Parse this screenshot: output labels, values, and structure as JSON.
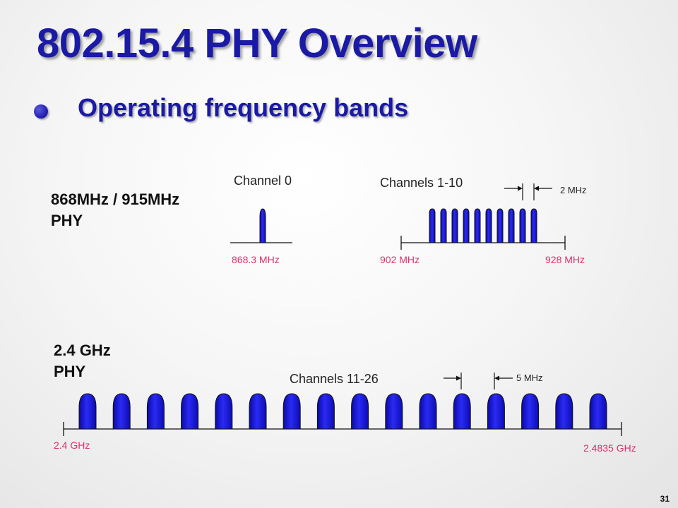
{
  "slide": {
    "title": "802.15.4 PHY Overview",
    "bullet": "Operating frequency bands",
    "page_number": "31"
  },
  "band_low": {
    "phy_label_line1": "868MHz / 915MHz",
    "phy_label_line2": "PHY",
    "channel0_label": "Channel 0",
    "channel0_freq": "868.3 MHz",
    "channels_label": "Channels 1-10",
    "channels_count": 10,
    "start_freq": "902 MHz",
    "end_freq": "928 MHz",
    "spacing": "2 MHz"
  },
  "band_high": {
    "phy_label_line1": "2.4 GHz",
    "phy_label_line2": "PHY",
    "channels_label": "Channels 11-26",
    "channels_count": 16,
    "start_freq": "2.4 GHz",
    "end_freq": "2.4835 GHz",
    "spacing": "5 MHz"
  },
  "colors": {
    "title": "#1a1aa6",
    "channel_fill": "#1f1fe6",
    "frequency_text": "#e0306a"
  }
}
